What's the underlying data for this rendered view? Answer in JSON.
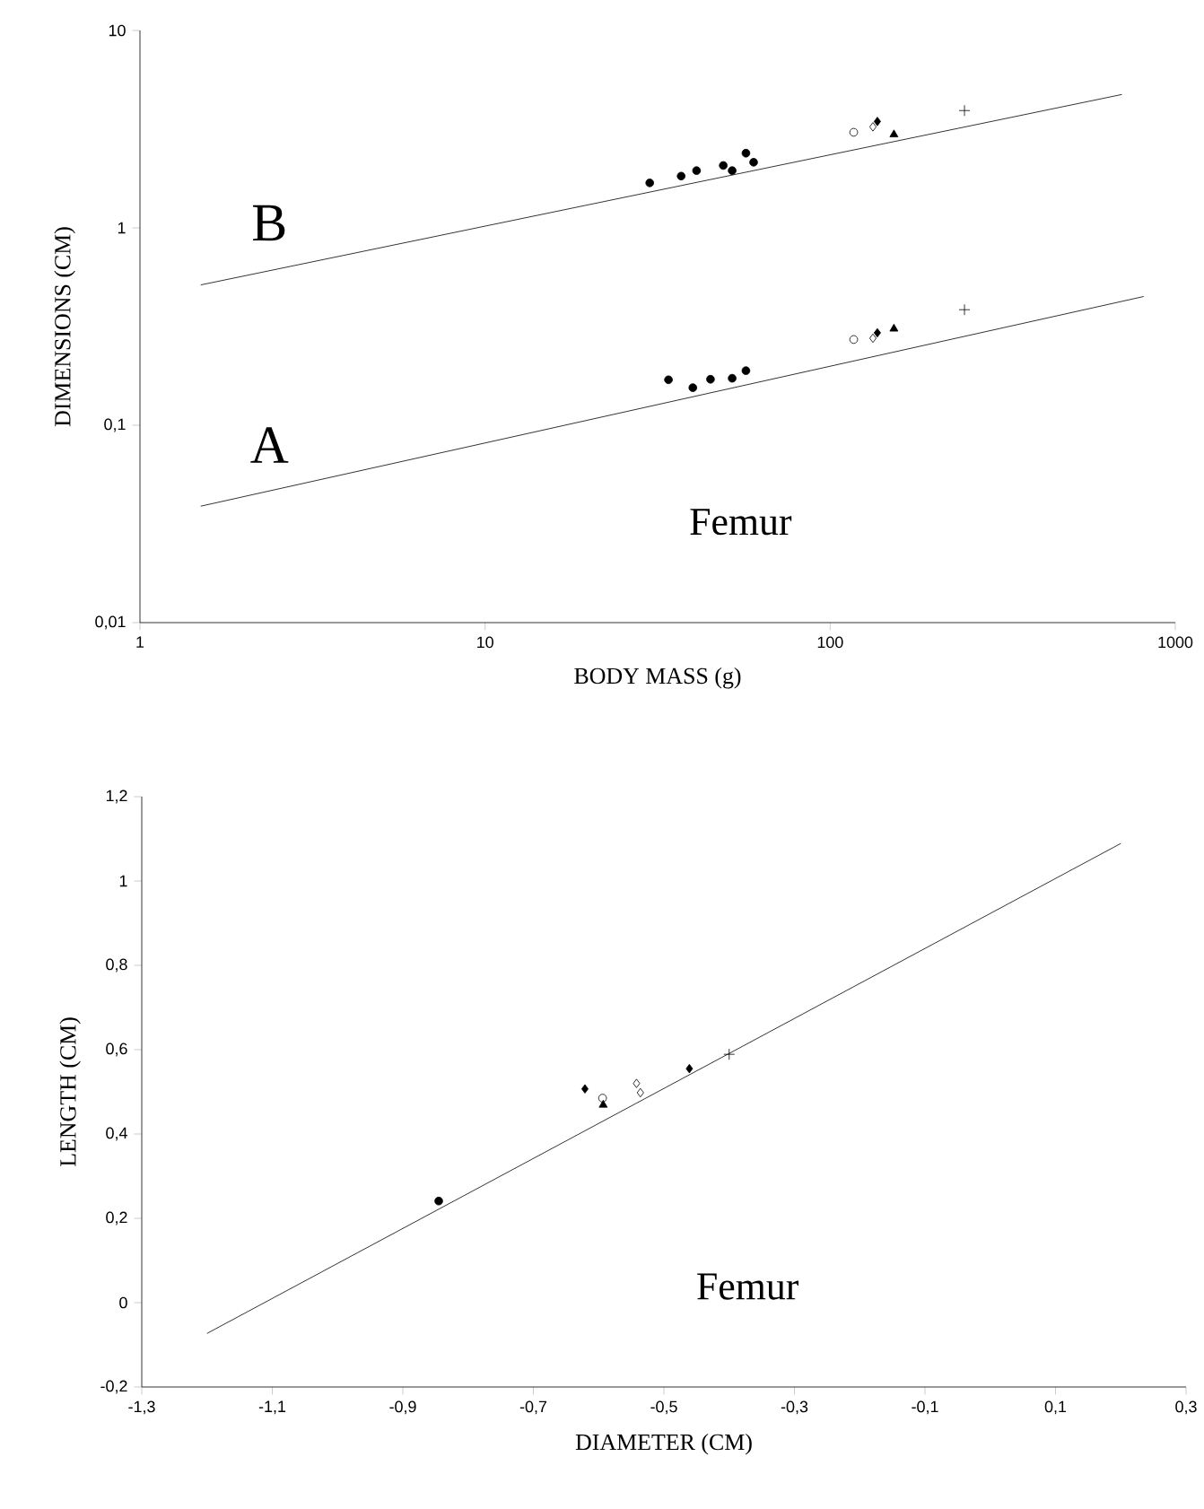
{
  "chart_data": [
    {
      "type": "scatter",
      "xlabel": "BODY MASS (g)",
      "ylabel": "DIMENSIONS (CM)",
      "log": "xy",
      "xlim": [
        1,
        1000
      ],
      "ylim": [
        0.01,
        10
      ],
      "xticks": [
        1,
        10,
        100,
        1000
      ],
      "yticks": [
        {
          "value": 0.01,
          "label": "0,01"
        },
        {
          "value": 0.1,
          "label": "0,1"
        },
        {
          "value": 1,
          "label": "1"
        },
        {
          "value": 10,
          "label": "10"
        }
      ],
      "series": [
        {
          "type": "line",
          "color": "#000000",
          "marker": "none",
          "line_style": "solid",
          "x": [
            1.5,
            700
          ],
          "values": [
            0.514,
            4.74
          ]
        },
        {
          "type": "line",
          "color": "#000000",
          "marker": "none",
          "line_style": "solid",
          "x": [
            1.5,
            810
          ],
          "values": [
            0.0389,
            0.449
          ]
        },
        {
          "color": "#000000",
          "marker": "circle",
          "x": [
            30,
            37,
            41,
            49,
            52,
            57,
            60
          ],
          "values": [
            1.69,
            1.83,
            1.95,
            2.07,
            1.95,
            2.39,
            2.15
          ]
        },
        {
          "color": "#000000",
          "marker": "circle",
          "x": [
            34,
            40,
            45,
            52,
            57
          ],
          "values": [
            0.17,
            0.155,
            0.171,
            0.173,
            0.189
          ]
        },
        {
          "color": "#ffffff",
          "marker": "circle",
          "x": [
            117,
            117
          ],
          "values": [
            3.05,
            0.272
          ]
        },
        {
          "color": "#ffffff",
          "marker": "diamond",
          "x": [
            133,
            133
          ],
          "values": [
            3.25,
            0.276
          ]
        },
        {
          "color": "#000000",
          "marker": "diamond",
          "x": [
            137,
            137
          ],
          "values": [
            3.46,
            0.294
          ]
        },
        {
          "color": "#000000",
          "marker": "triangle",
          "x": [
            153,
            153
          ],
          "values": [
            2.97,
            0.308
          ]
        },
        {
          "color": "#000000",
          "marker": "cross",
          "x": [
            245,
            245
          ],
          "values": [
            3.93,
            0.385
          ]
        }
      ],
      "annotations": [
        "B",
        "A",
        "Femur"
      ]
    },
    {
      "type": "scatter",
      "xlabel": "DIAMETER (CM)",
      "ylabel": "LENGTH (CM)",
      "xlim": [
        -1.3,
        0.3
      ],
      "ylim": [
        -0.2,
        1.2
      ],
      "xticks": [
        {
          "value": -1.3,
          "label": "-1,3"
        },
        {
          "value": -1.1,
          "label": "-1,1"
        },
        {
          "value": -0.9,
          "label": "-0,9"
        },
        {
          "value": -0.7,
          "label": "-0,7"
        },
        {
          "value": -0.5,
          "label": "-0,5"
        },
        {
          "value": -0.3,
          "label": "-0,3"
        },
        {
          "value": -0.1,
          "label": "-0,1"
        },
        {
          "value": 0.1,
          "label": "0,1"
        },
        {
          "value": 0.3,
          "label": "0,3"
        }
      ],
      "yticks": [
        {
          "value": -0.2,
          "label": "-0,2"
        },
        0,
        {
          "value": 0.2,
          "label": "0,2"
        },
        {
          "value": 0.4,
          "label": "0,4"
        },
        {
          "value": 0.6,
          "label": "0,6"
        },
        {
          "value": 0.8,
          "label": "0,8"
        },
        1,
        {
          "value": 1.2,
          "label": "1,2"
        }
      ],
      "series": [
        {
          "type": "line",
          "color": "#000000",
          "marker": "none",
          "line_style": "solid",
          "x": [
            -1.2,
            0.2
          ],
          "values": [
            -0.073,
            1.089
          ]
        },
        {
          "color": "#000000",
          "marker": "circle",
          "x": [
            -0.845
          ],
          "values": [
            0.241
          ]
        },
        {
          "color": "#000000",
          "marker": "diamond",
          "x": [
            -0.621,
            -0.461
          ],
          "values": [
            0.507,
            0.555
          ]
        },
        {
          "color": "#ffffff",
          "marker": "circle",
          "x": [
            -0.594
          ],
          "values": [
            0.485
          ]
        },
        {
          "color": "#000000",
          "marker": "triangle",
          "x": [
            -0.593
          ],
          "values": [
            0.469
          ]
        },
        {
          "color": "#ffffff",
          "marker": "diamond",
          "x": [
            -0.542,
            -0.536
          ],
          "values": [
            0.52,
            0.498
          ]
        },
        {
          "color": "#000000",
          "marker": "cross",
          "x": [
            -0.4
          ],
          "values": [
            0.589
          ]
        }
      ],
      "annotations": [
        "Femur"
      ]
    }
  ]
}
